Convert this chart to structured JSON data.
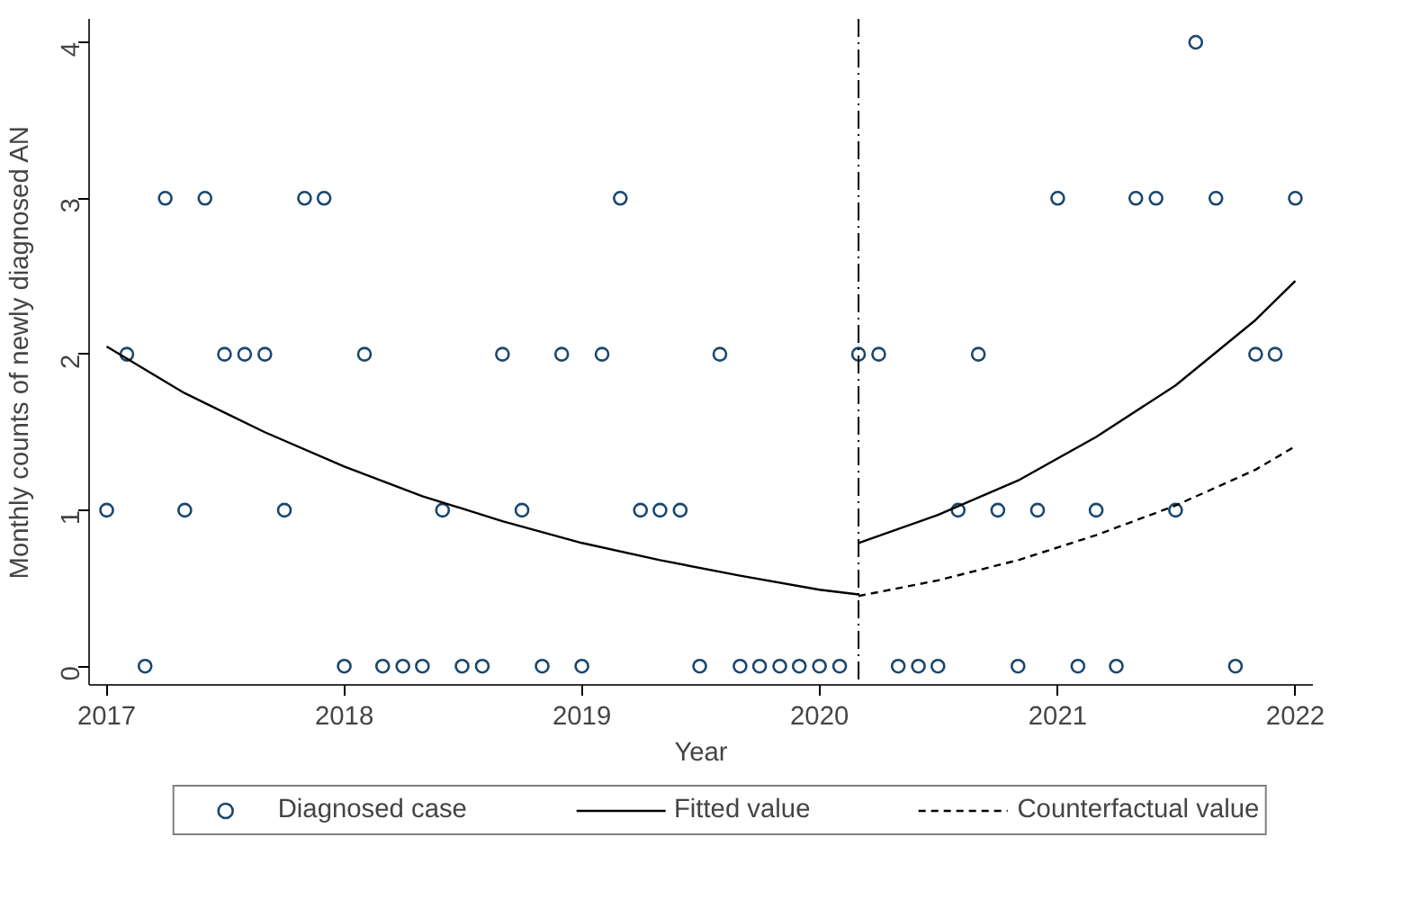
{
  "chart_data": {
    "type": "scatter",
    "xlabel": "Year",
    "ylabel": "Monthly counts of newly diagnosed AN",
    "x": [
      "2017-01",
      "2017-02",
      "2017-03",
      "2017-04",
      "2017-05",
      "2017-06",
      "2017-07",
      "2017-08",
      "2017-09",
      "2017-10",
      "2017-11",
      "2017-12",
      "2018-01",
      "2018-02",
      "2018-03",
      "2018-04",
      "2018-05",
      "2018-06",
      "2018-07",
      "2018-08",
      "2018-09",
      "2018-10",
      "2018-11",
      "2018-12",
      "2019-01",
      "2019-02",
      "2019-03",
      "2019-04",
      "2019-05",
      "2019-06",
      "2019-07",
      "2019-08",
      "2019-09",
      "2019-10",
      "2019-11",
      "2019-12",
      "2020-01",
      "2020-02",
      "2020-03",
      "2020-04",
      "2020-05",
      "2020-06",
      "2020-07",
      "2020-08",
      "2020-09",
      "2020-10",
      "2020-11",
      "2020-12",
      "2021-01",
      "2021-02",
      "2021-03",
      "2021-04",
      "2021-05",
      "2021-06",
      "2021-07",
      "2021-08",
      "2021-09",
      "2021-10",
      "2021-11",
      "2021-12",
      "2022-01"
    ],
    "series": [
      {
        "name": "Diagnosed case",
        "color": "#1a476f",
        "marker": "circle",
        "values": [
          1,
          2,
          0,
          3,
          1,
          3,
          2,
          2,
          2,
          1,
          3,
          3,
          0,
          2,
          0,
          0,
          0,
          1,
          0,
          0,
          2,
          1,
          0,
          2,
          0,
          2,
          3,
          1,
          1,
          1,
          0,
          2,
          0,
          0,
          0,
          0,
          0,
          0,
          2,
          2,
          0,
          0,
          0,
          1,
          2,
          1,
          0,
          1,
          3,
          0,
          1,
          0,
          3,
          3,
          1,
          4,
          3,
          0,
          2,
          2,
          3
        ]
      },
      {
        "name": "Fitted value",
        "type": "line",
        "color": "#000000",
        "line_style": "solid",
        "x": [
          "2017-01",
          "2017-05",
          "2017-09",
          "2018-01",
          "2018-05",
          "2018-09",
          "2019-01",
          "2019-05",
          "2019-09",
          "2020-01",
          "2020-03"
        ],
        "values": [
          2.05,
          1.75,
          1.5,
          1.28,
          1.09,
          0.93,
          0.79,
          0.68,
          0.58,
          0.49,
          0.46
        ]
      },
      {
        "type": "line",
        "color": "#000000",
        "line_style": "solid",
        "x": [
          "2020-03",
          "2020-07",
          "2020-11",
          "2021-03",
          "2021-07",
          "2021-11",
          "2022-01"
        ],
        "values": [
          0.79,
          0.97,
          1.19,
          1.47,
          1.8,
          2.22,
          2.47
        ]
      },
      {
        "name": "Counterfactual value",
        "type": "line",
        "color": "#000000",
        "line_style": "dashed",
        "x": [
          "2020-03",
          "2020-07",
          "2020-11",
          "2021-03",
          "2021-07",
          "2021-11",
          "2022-01"
        ],
        "values": [
          0.45,
          0.55,
          0.68,
          0.84,
          1.03,
          1.26,
          1.41
        ]
      }
    ],
    "xlim": [
      "2016-12-05",
      "2022-01-28"
    ],
    "xticks": [
      {
        "value": "2017-01-01",
        "label": "2017"
      },
      {
        "value": "2018-01-01",
        "label": "2018"
      },
      {
        "value": "2019-01-01",
        "label": "2019"
      },
      {
        "value": "2020-01-01",
        "label": "2020"
      },
      {
        "value": "2021-01-01",
        "label": "2021"
      },
      {
        "value": "2022-01-01",
        "label": "2022"
      }
    ],
    "ylim": [
      -0.12,
      4.15
    ],
    "yticks": [
      0,
      1,
      2,
      3,
      4
    ],
    "ref_lines": [
      {
        "axis": "x",
        "value": "2020-03",
        "color": "#000000",
        "line_style": "dashdot"
      }
    ],
    "grid": false,
    "legend": "bottom"
  }
}
